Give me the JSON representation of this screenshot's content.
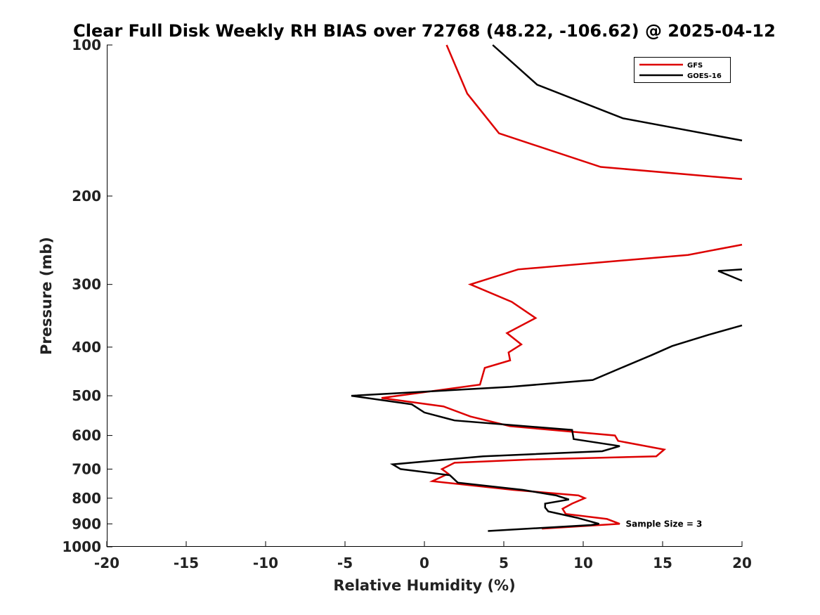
{
  "chart_data": {
    "type": "line",
    "title": "Clear Full Disk Weekly RH BIAS over 72768 (48.22, -106.62) @ 2025-04-12",
    "xlabel": "Relative Humidity (%)",
    "ylabel": "Pressure (mb)",
    "xlim": [
      -20,
      20
    ],
    "ylim": [
      100,
      1000
    ],
    "yscale": "log",
    "y_reversed": true,
    "xticks": [
      -20,
      -15,
      -10,
      -5,
      0,
      5,
      10,
      15,
      20
    ],
    "yticks": [
      100,
      200,
      300,
      400,
      500,
      600,
      700,
      800,
      900,
      1000
    ],
    "legend_position": "top-right",
    "annotation": {
      "text": "Sample Size = 3",
      "x": 12.5,
      "y": 900
    },
    "series": [
      {
        "name": "GFS",
        "color": "#dd0000",
        "segments": [
          [
            [
              1.4,
              100
            ],
            [
              2.7,
              125
            ],
            [
              4.7,
              150
            ],
            [
              11.1,
              175
            ],
            [
              20,
              185
            ]
          ],
          [
            [
              20,
              250
            ],
            [
              16.6,
              262
            ],
            [
              5.9,
              280
            ],
            [
              2.9,
              300
            ],
            [
              5.5,
              325
            ],
            [
              7.0,
              350
            ],
            [
              5.2,
              375
            ],
            [
              6.1,
              395
            ],
            [
              5.3,
              410
            ],
            [
              5.4,
              425
            ],
            [
              3.8,
              440
            ],
            [
              3.5,
              475
            ],
            [
              -2.7,
              505
            ],
            [
              1.2,
              525
            ],
            [
              2.9,
              550
            ],
            [
              5.4,
              575
            ],
            [
              12.0,
              600
            ],
            [
              12.2,
              615
            ],
            [
              15.1,
              640
            ],
            [
              14.6,
              660
            ],
            [
              6.7,
              670
            ],
            [
              1.9,
              680
            ],
            [
              1.1,
              700
            ],
            [
              1.5,
              715
            ],
            [
              0.5,
              740
            ],
            [
              5.6,
              770
            ],
            [
              9.7,
              790
            ],
            [
              10.1,
              800
            ],
            [
              9.3,
              820
            ],
            [
              8.7,
              840
            ],
            [
              8.9,
              860
            ],
            [
              11.5,
              880
            ],
            [
              12.3,
              900
            ],
            [
              7.4,
              920
            ]
          ]
        ]
      },
      {
        "name": "GOES-16",
        "color": "#000000",
        "segments": [
          [
            [
              4.3,
              100
            ],
            [
              7.1,
              120
            ],
            [
              12.5,
              140
            ],
            [
              20,
              155
            ]
          ],
          [
            [
              20,
              280
            ],
            [
              18.5,
              282
            ],
            [
              20,
              295
            ]
          ],
          [
            [
              20,
              362
            ],
            [
              17.9,
              378
            ],
            [
              15.6,
              398
            ],
            [
              14.3,
              415
            ],
            [
              12.4,
              440
            ],
            [
              10.6,
              465
            ],
            [
              5.4,
              480
            ],
            [
              -4.6,
              500
            ],
            [
              -0.8,
              520
            ],
            [
              0,
              540
            ],
            [
              1.9,
              560
            ],
            [
              9.3,
              585
            ],
            [
              9.4,
              610
            ],
            [
              12.3,
              630
            ],
            [
              11.2,
              645
            ],
            [
              3.7,
              660
            ],
            [
              -2.0,
              685
            ],
            [
              -1.5,
              700
            ],
            [
              1.6,
              720
            ],
            [
              2.1,
              745
            ],
            [
              6.2,
              770
            ],
            [
              8.3,
              790
            ],
            [
              9.1,
              805
            ],
            [
              7.6,
              820
            ],
            [
              7.6,
              835
            ],
            [
              7.8,
              850
            ],
            [
              9.6,
              875
            ],
            [
              11.0,
              900
            ],
            [
              10.5,
              905
            ],
            [
              4.0,
              930
            ]
          ]
        ]
      }
    ]
  }
}
